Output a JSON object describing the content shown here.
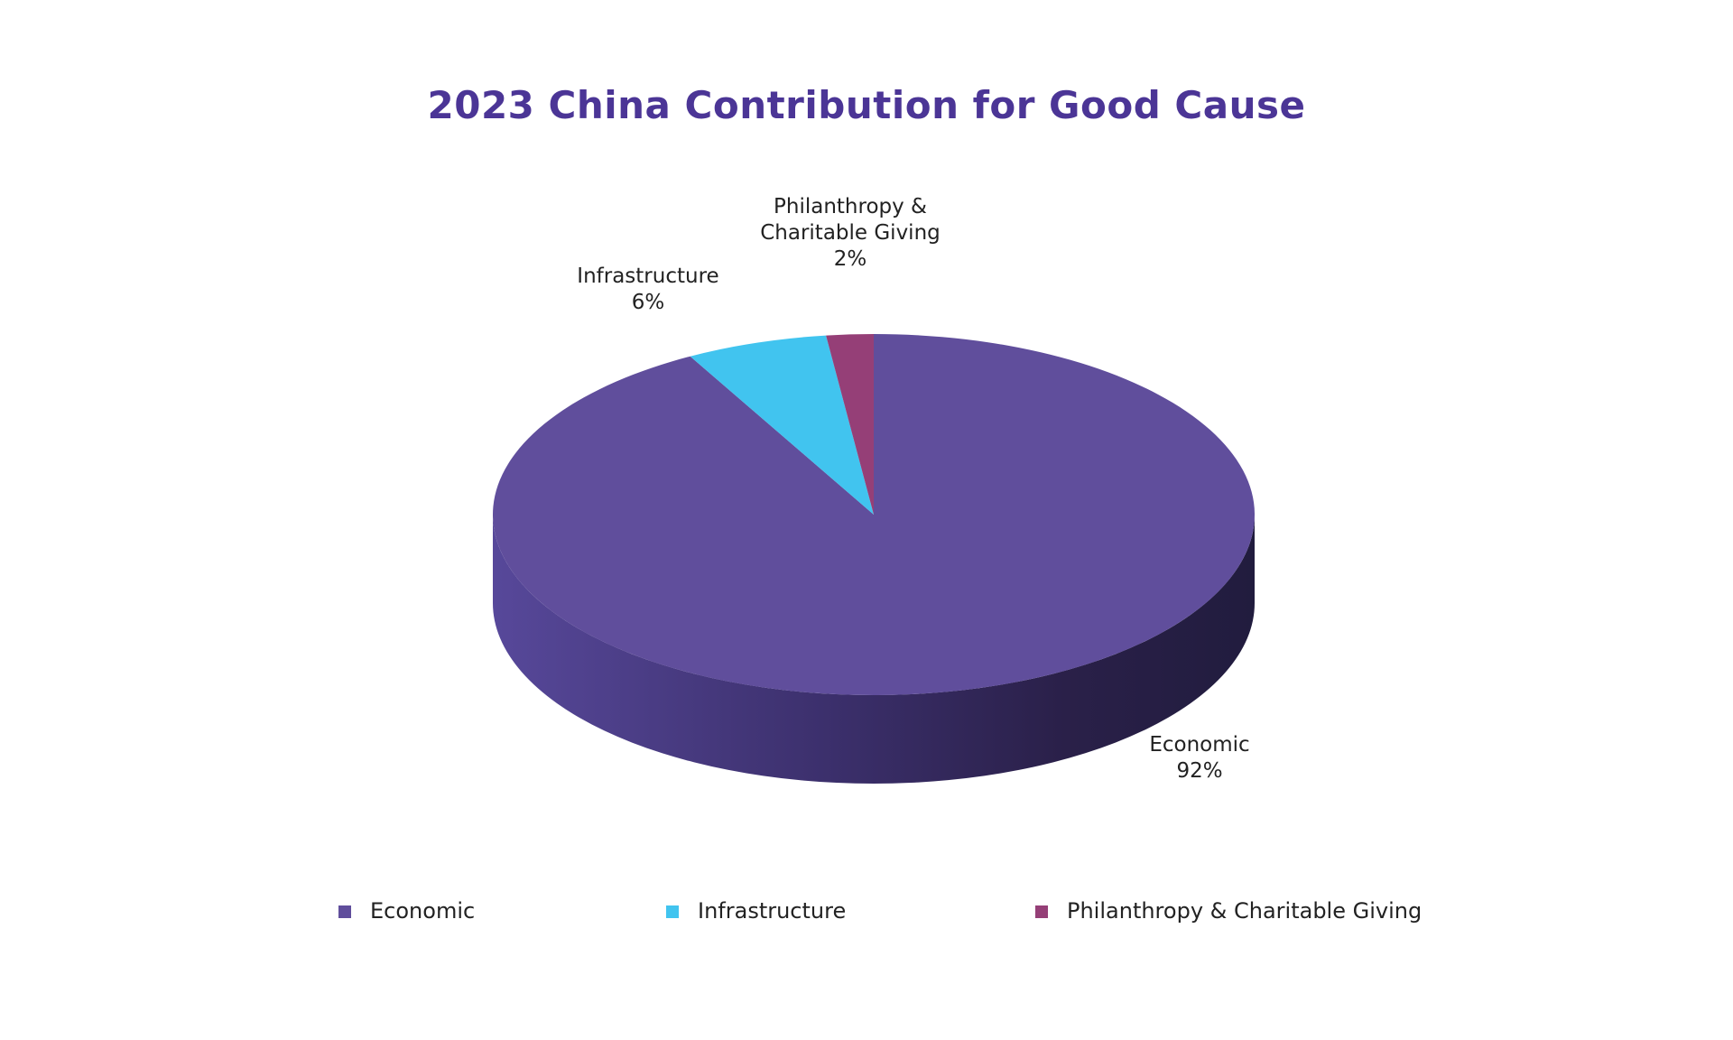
{
  "chart_data": {
    "type": "pie",
    "title": "2023 China Contribution for Good Cause",
    "style": "3d",
    "legend_position": "bottom",
    "slices": [
      {
        "label": "Economic",
        "value": 92,
        "value_label": "92%",
        "color": "#604e9c"
      },
      {
        "label": "Infrastructure",
        "value": 6,
        "value_label": "6%",
        "color": "#41c4ef"
      },
      {
        "label": "Philanthropy & Charitable Giving",
        "value": 2,
        "value_label": "2%",
        "color": "#953f77"
      }
    ],
    "data_labels": [
      {
        "lines": [
          "Economic",
          "92%"
        ]
      },
      {
        "lines": [
          "Infrastructure",
          "6%"
        ]
      },
      {
        "lines": [
          "Philanthropy &",
          "Charitable Giving",
          "2%"
        ]
      }
    ],
    "legend": [
      "Economic",
      "Infrastructure",
      "Philanthropy & Charitable Giving"
    ]
  }
}
